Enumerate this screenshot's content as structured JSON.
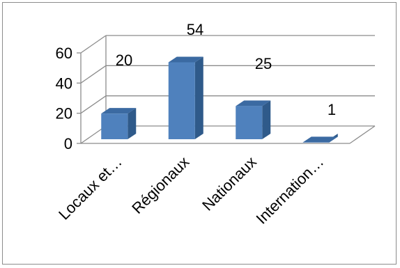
{
  "chart_data": {
    "type": "bar",
    "categories": [
      "Locaux et…",
      "Régionaux",
      "Nationaux",
      "Internation…"
    ],
    "values": [
      20,
      54,
      25,
      1
    ],
    "ylim": [
      0,
      60
    ],
    "yticks": [
      "0",
      "20",
      "40",
      "60"
    ],
    "data_labels": [
      "20",
      "54",
      "25",
      "1"
    ],
    "grid": true,
    "legend": "none",
    "style": "3d-column",
    "colors": {
      "bar_front": "#4f81bd",
      "bar_side": "#2f5a8a",
      "bar_top": "#3b6aa2",
      "grid": "#8c8c8c"
    }
  }
}
